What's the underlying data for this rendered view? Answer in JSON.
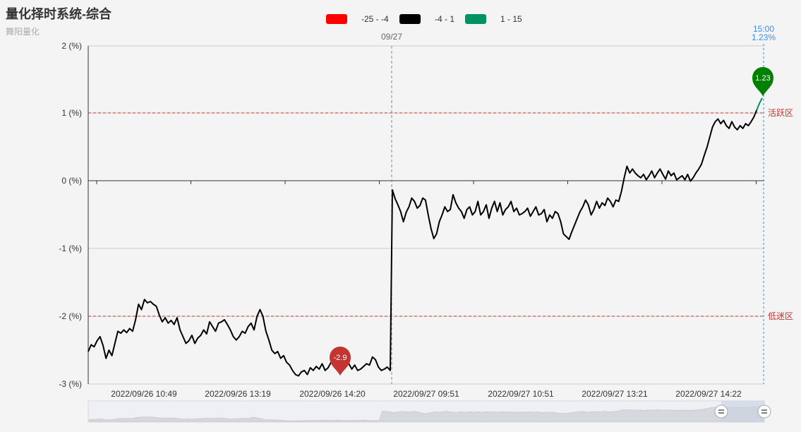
{
  "title": "量化择时系统-综合",
  "subtitle": "舞阳量化",
  "legend": [
    {
      "label": "-25 - -4",
      "color": "#ff0000"
    },
    {
      "label": "-4 - 1",
      "color": "#000000"
    },
    {
      "label": "1 - 15",
      "color": "#00935f"
    }
  ],
  "chart_data": {
    "type": "line",
    "y_axis": {
      "min": -3,
      "max": 2,
      "ticks": [
        2,
        1,
        0,
        -1,
        -2,
        -3
      ],
      "tick_suffix": " (%)"
    },
    "x_labels": [
      "2022/09/26 10:49",
      "2022/09/26 13:19",
      "2022/09/26 14:20",
      "2022/09/27 09:51",
      "2022/09/27 10:51",
      "2022/09/27 13:21",
      "2022/09/27 14:22"
    ],
    "day_separator_label": "09/27",
    "cursor": {
      "time": "15:00",
      "value": "1.23%"
    },
    "mark_lines": [
      {
        "value": 1,
        "label": "活跃区",
        "color": "#c23531"
      },
      {
        "value": -2,
        "label": "低迷区",
        "color": "#c23531"
      }
    ],
    "mark_points": [
      {
        "name": "min",
        "label": "-2.9",
        "value": -2.9,
        "color": "#c23531"
      },
      {
        "name": "max",
        "label": "1.23",
        "value": 1.23,
        "color": "#008000"
      }
    ],
    "series": [
      {
        "values": [
          -2.52,
          -2.42,
          -2.45,
          -2.36,
          -2.3,
          -2.43,
          -2.62,
          -2.5,
          -2.58,
          -2.4,
          -2.22,
          -2.25,
          -2.2,
          -2.24,
          -2.18,
          -2.22,
          -2.05,
          -1.82,
          -1.9,
          -1.75,
          -1.8,
          -1.78,
          -1.82,
          -1.85,
          -1.98,
          -2.08,
          -2.02,
          -2.1,
          -2.06,
          -2.12,
          -2.02,
          -2.2,
          -2.3,
          -2.4,
          -2.36,
          -2.28,
          -2.4,
          -2.32,
          -2.28,
          -2.2,
          -2.26,
          -2.08,
          -2.15,
          -2.22,
          -2.1,
          -2.08,
          -2.05,
          -2.12,
          -2.2,
          -2.3,
          -2.35,
          -2.3,
          -2.22,
          -2.25,
          -2.15,
          -2.1,
          -2.2,
          -2.0,
          -1.9,
          -2.0,
          -2.22,
          -2.35,
          -2.5,
          -2.55,
          -2.52,
          -2.62,
          -2.58,
          -2.68,
          -2.72,
          -2.8,
          -2.86,
          -2.88,
          -2.82,
          -2.8,
          -2.86,
          -2.76,
          -2.8,
          -2.74,
          -2.78,
          -2.7,
          -2.8,
          -2.76,
          -2.68,
          -2.72,
          -2.76,
          -2.7,
          -2.75,
          -2.62,
          -2.7,
          -2.78,
          -2.72,
          -2.8,
          -2.78,
          -2.74,
          -2.7,
          -2.72,
          -2.6,
          -2.64,
          -2.75,
          -2.8,
          -2.78,
          -2.75,
          -2.8,
          -0.13,
          -0.26,
          -0.35,
          -0.45,
          -0.6,
          -0.46,
          -0.38,
          -0.25,
          -0.3,
          -0.4,
          -0.36,
          -0.25,
          -0.28,
          -0.5,
          -0.7,
          -0.85,
          -0.78,
          -0.6,
          -0.5,
          -0.38,
          -0.45,
          -0.42,
          -0.2,
          -0.32,
          -0.4,
          -0.45,
          -0.55,
          -0.42,
          -0.38,
          -0.5,
          -0.45,
          -0.3,
          -0.5,
          -0.45,
          -0.35,
          -0.55,
          -0.4,
          -0.3,
          -0.45,
          -0.32,
          -0.5,
          -0.42,
          -0.38,
          -0.3,
          -0.45,
          -0.4,
          -0.5,
          -0.48,
          -0.45,
          -0.4,
          -0.52,
          -0.45,
          -0.38,
          -0.5,
          -0.48,
          -0.42,
          -0.6,
          -0.5,
          -0.55,
          -0.45,
          -0.48,
          -0.6,
          -0.78,
          -0.82,
          -0.86,
          -0.75,
          -0.65,
          -0.55,
          -0.45,
          -0.38,
          -0.28,
          -0.35,
          -0.5,
          -0.42,
          -0.3,
          -0.4,
          -0.32,
          -0.36,
          -0.25,
          -0.3,
          -0.38,
          -0.28,
          -0.3,
          -0.15,
          0.05,
          0.22,
          0.12,
          0.18,
          0.12,
          0.08,
          0.05,
          0.1,
          0.02,
          0.08,
          0.15,
          0.05,
          0.12,
          0.18,
          0.1,
          0.03,
          0.15,
          0.08,
          0.12,
          0.02,
          0.05,
          0.08,
          0.02,
          0.1,
          0.0,
          0.05,
          0.12,
          0.18,
          0.25,
          0.38,
          0.5,
          0.65,
          0.8,
          0.88,
          0.92,
          0.85,
          0.9,
          0.82,
          0.78,
          0.88,
          0.8,
          0.76,
          0.82,
          0.78,
          0.85,
          0.82,
          0.88,
          0.95,
          1.05,
          1.15,
          1.23
        ]
      }
    ]
  }
}
